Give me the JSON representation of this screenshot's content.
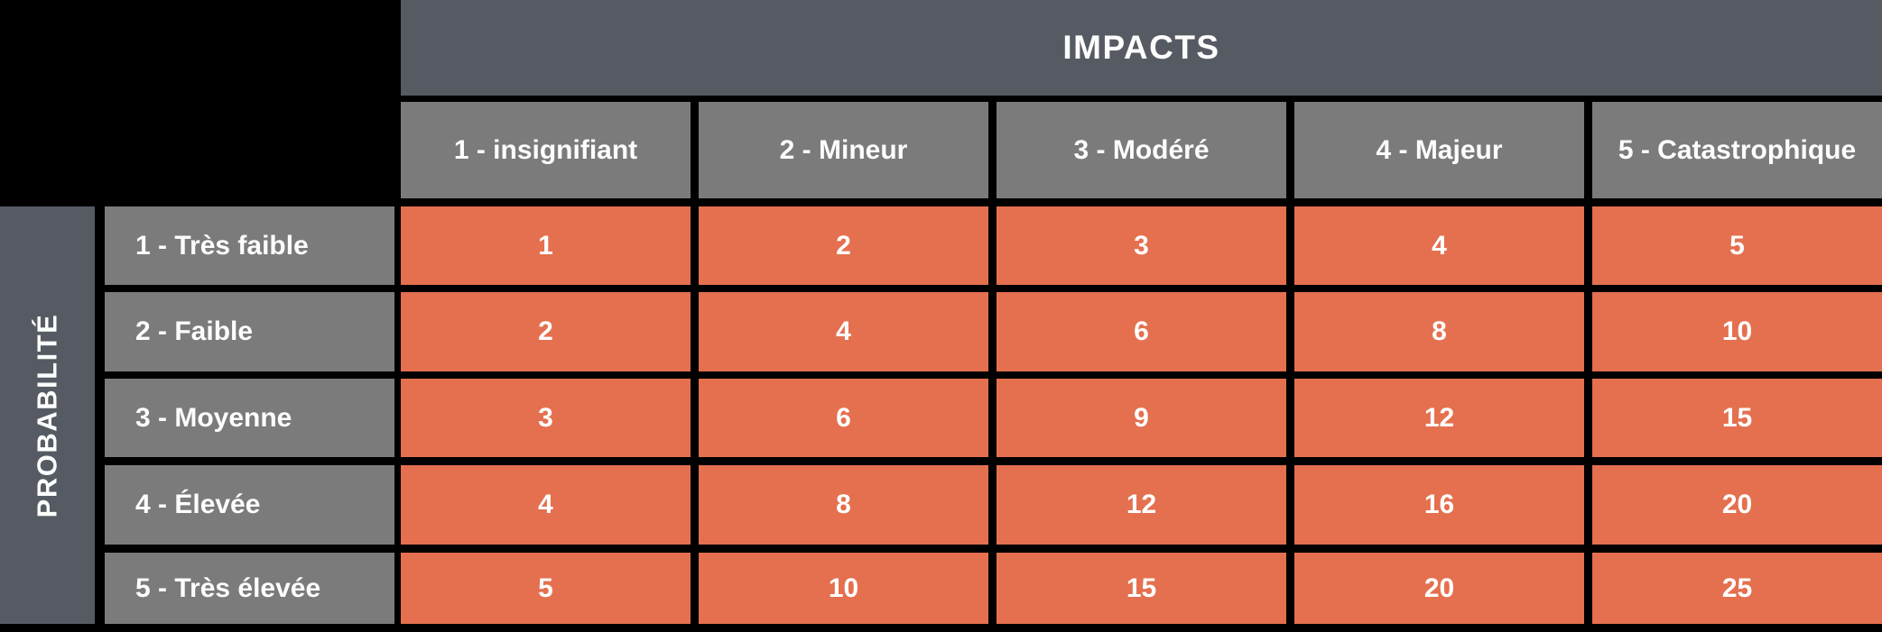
{
  "colors": {
    "background": "#000000",
    "axis_header_bg": "#565b63",
    "level_header_bg": "#7b7b7b",
    "value_cell_bg": "#e4704f",
    "text": "#ffffff"
  },
  "chart_data": {
    "type": "heatmap",
    "x_axis_label": "IMPACTS",
    "y_axis_label": "PROBABILITÉ",
    "columns": [
      "1 - insignifiant",
      "2 - Mineur",
      "3 - Modéré",
      "4 - Majeur",
      "5 - Catastrophique"
    ],
    "rows": [
      "1 - Très faible",
      "2 - Faible",
      "3 - Moyenne",
      "4 - Élevée",
      "5 - Très élevée"
    ],
    "values": [
      [
        1,
        2,
        3,
        4,
        5
      ],
      [
        2,
        4,
        6,
        8,
        10
      ],
      [
        3,
        6,
        9,
        12,
        15
      ],
      [
        4,
        8,
        12,
        16,
        20
      ],
      [
        5,
        10,
        15,
        20,
        25
      ]
    ],
    "layout": {
      "legend": "none",
      "grid_gap_color": "#000000",
      "x_header_position": "top",
      "y_header_position": "left"
    }
  }
}
